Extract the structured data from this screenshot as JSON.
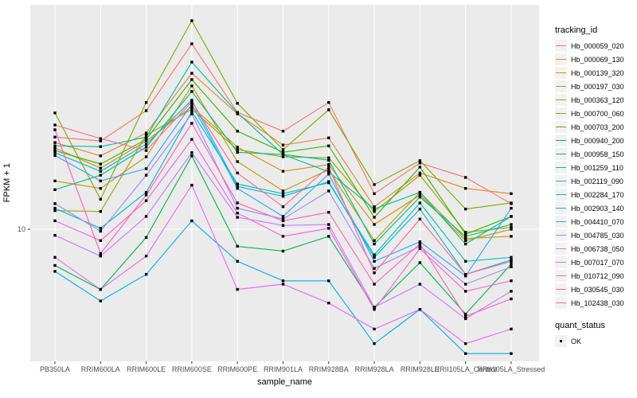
{
  "chart_data": {
    "type": "line",
    "title": "",
    "xlabel": "sample_name",
    "ylabel": "FPKM + 1",
    "y_scale": "log10",
    "ylim": [
      2.6,
      98
    ],
    "y_axis": {
      "label": "FPKM + 1",
      "tick_label": "10",
      "tick_value": 10
    },
    "x_axis": {
      "label": "sample_name"
    },
    "grid": true,
    "legend_position": "right",
    "colors": {
      "panel_bg": "#EBEBEB",
      "grid": "#FFFFFF",
      "axis_text": "#4D4D4D",
      "tick_mark": "#333333",
      "marker": "#000000",
      "legend_key_bg": "#F2F2F2"
    },
    "marker": {
      "shape": "square",
      "color": "#000000",
      "size": 3.4,
      "meaning": "quant_status OK"
    },
    "legend": {
      "color_title": "tracking_id",
      "shape_title": "quant_status",
      "shape_entries": [
        {
          "label": "OK",
          "marker": "black-square"
        }
      ]
    },
    "categories": [
      "PB350LA",
      "RRIM600LA",
      "RRIM600LE",
      "RRIM600SE",
      "RRIM600PE",
      "RRIM901LA",
      "RRIM928BA",
      "RRIM928LA",
      "RRIM928LE",
      "RRII105LA_Control",
      "RRII105LA_Stressed"
    ],
    "series": [
      {
        "tracking_id": "Hb_000059_020",
        "color": "#F8766D",
        "quant_status": "OK",
        "values": [
          25.7,
          24.7,
          33.7,
          66.8,
          33.1,
          27.3,
          36.6,
          14.4,
          19.7,
          17.0,
          13.0
        ]
      },
      {
        "tracking_id": "Hb_000069_130",
        "color": "#EA8331",
        "quant_status": "OK",
        "values": [
          24.3,
          21.2,
          26.8,
          49.4,
          32.6,
          23.7,
          25.5,
          12.6,
          17.8,
          15.2,
          14.4
        ]
      },
      {
        "tracking_id": "Hb_000139_320",
        "color": "#D89000",
        "quant_status": "OK",
        "values": [
          23.0,
          18.7,
          24.7,
          35.1,
          23.2,
          18.1,
          19.4,
          10.5,
          14.2,
          8.9,
          10.0
        ]
      },
      {
        "tracking_id": "Hb_000197_030",
        "color": "#C09B00",
        "quant_status": "OK",
        "values": [
          16.4,
          15.2,
          21.0,
          43.4,
          20.0,
          14.8,
          18.4,
          8.9,
          14.6,
          9.1,
          9.3
        ]
      },
      {
        "tracking_id": "Hb_000363_120",
        "color": "#A3A500",
        "quant_status": "OK",
        "values": [
          12.1,
          12.0,
          26.2,
          34.2,
          22.6,
          21.0,
          20.8,
          12.0,
          17.4,
          9.7,
          10.2
        ]
      },
      {
        "tracking_id": "Hb_000700_060",
        "color": "#7CAE00",
        "quant_status": "OK",
        "values": [
          32.9,
          13.6,
          36.6,
          84.6,
          36.3,
          22.6,
          34.0,
          15.8,
          20.2,
          12.3,
          13.1
        ]
      },
      {
        "tracking_id": "Hb_000703_200",
        "color": "#39B600",
        "quant_status": "OK",
        "values": [
          22.4,
          19.5,
          25.1,
          46.3,
          27.3,
          22.0,
          23.5,
          11.3,
          18.9,
          9.5,
          11.4
        ]
      },
      {
        "tracking_id": "Hb_000940_200",
        "color": "#00BB4E",
        "quant_status": "OK",
        "values": [
          6.9,
          5.4,
          9.2,
          21.2,
          8.4,
          8.0,
          9.3,
          4.5,
          7.1,
          4.2,
          7.0
        ]
      },
      {
        "tracking_id": "Hb_000958_150",
        "color": "#00C087",
        "quant_status": "OK",
        "values": [
          15.0,
          17.4,
          23.2,
          41.0,
          22.0,
          21.5,
          20.3,
          8.6,
          13.9,
          9.3,
          10.5
        ]
      },
      {
        "tracking_id": "Hb_001259_110",
        "color": "#00C1A3",
        "quant_status": "OK",
        "values": [
          23.5,
          23.3,
          25.7,
          55.4,
          32.9,
          21.5,
          18.0,
          12.3,
          14.6,
          8.6,
          11.4
        ]
      },
      {
        "tracking_id": "Hb_002119_090",
        "color": "#00BFC4",
        "quant_status": "OK",
        "values": [
          12.4,
          10.1,
          14.6,
          33.4,
          15.9,
          14.4,
          16.1,
          7.7,
          13.1,
          7.2,
          7.5
        ]
      },
      {
        "tracking_id": "Hb_002284_170",
        "color": "#00BAE0",
        "quant_status": "OK",
        "values": [
          21.9,
          18.1,
          23.9,
          37.5,
          15.5,
          14.0,
          16.3,
          7.5,
          12.3,
          6.3,
          7.3
        ]
      },
      {
        "tracking_id": "Hb_002903_140",
        "color": "#00B0F6",
        "quant_status": "OK",
        "values": [
          6.5,
          4.8,
          6.3,
          10.9,
          7.2,
          5.9,
          5.9,
          3.1,
          4.4,
          2.8,
          2.8
        ]
      },
      {
        "tracking_id": "Hb_004410_070",
        "color": "#35A2FF",
        "quant_status": "OK",
        "values": [
          21.3,
          16.4,
          18.6,
          36.0,
          15.2,
          11.4,
          17.6,
          7.2,
          8.8,
          6.2,
          12.4
        ]
      },
      {
        "tracking_id": "Hb_004785_030",
        "color": "#9590FF",
        "quant_status": "OK",
        "values": [
          13.0,
          9.8,
          17.4,
          32.6,
          12.4,
          11.1,
          14.8,
          6.7,
          8.4,
          5.7,
          6.8
        ]
      },
      {
        "tracking_id": "Hb_006738_050",
        "color": "#C77CFF",
        "quant_status": "OK",
        "values": [
          9.4,
          7.6,
          11.4,
          21.9,
          11.3,
          10.4,
          10.5,
          4.5,
          5.7,
          4.0,
          5.3
        ]
      },
      {
        "tracking_id": "Hb_007017_070",
        "color": "#E76BF3",
        "quant_status": "OK",
        "values": [
          7.5,
          5.4,
          7.6,
          15.7,
          5.4,
          5.7,
          4.7,
          3.6,
          4.4,
          3.1,
          3.6
        ]
      },
      {
        "tracking_id": "Hb_010712_090",
        "color": "#FA62DB",
        "quant_status": "OK",
        "values": [
          10.9,
          8.9,
          13.4,
          25.1,
          11.8,
          9.3,
          10.1,
          4.4,
          8.2,
          5.3,
          5.9
        ]
      },
      {
        "tracking_id": "Hb_030545_030",
        "color": "#FF62BC",
        "quant_status": "OK",
        "values": [
          27.7,
          7.8,
          14.2,
          29.6,
          13.1,
          10.9,
          11.9,
          5.7,
          8.6,
          4.1,
          4.9
        ]
      },
      {
        "tracking_id": "Hb_102438_030",
        "color": "#FF6A98",
        "quant_status": "OK",
        "values": [
          29.1,
          25.3,
          22.4,
          36.9,
          17.8,
          12.6,
          18.9,
          6.4,
          11.1,
          6.3,
          7.2
        ]
      }
    ]
  }
}
